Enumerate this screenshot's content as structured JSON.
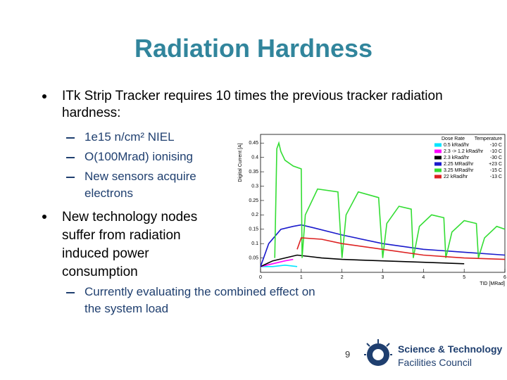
{
  "title": "Radiation Hardness",
  "bullets": [
    {
      "text": "ITk Strip Tracker requires 10 times the previous tracker radiation hardness:",
      "sub": [
        "1e15 n/cm² NIEL",
        "O(100Mrad) ionising",
        "New sensors acquire electrons"
      ]
    },
    {
      "text": "New technology nodes suffer from radiation induced power consumption",
      "sub": [
        "Currently evaluating the combined effect on the system load"
      ]
    }
  ],
  "page_number": 9,
  "logo": {
    "line1": "Science & Technology",
    "line2": "Facilities Council"
  },
  "chart_data": {
    "type": "line",
    "x_label": "TID [MRad]",
    "y_label": "Digital Current [A]",
    "xlim": [
      0,
      6
    ],
    "ylim": [
      0,
      0.48
    ],
    "xticks": [
      0,
      1,
      2,
      3,
      4,
      5,
      6
    ],
    "yticks": [
      0.05,
      0.1,
      0.15,
      0.2,
      0.25,
      0.3,
      0.35,
      0.4,
      0.45
    ],
    "legend": "upper right",
    "legend_headers": [
      "Dose Rate",
      "Temperature"
    ],
    "series": [
      {
        "name": "0.5 kRad/hr",
        "temperature": "-10 C",
        "color": "#00e5ff",
        "x": [
          0,
          0.3,
          0.6,
          0.9
        ],
        "values": [
          0.02,
          0.02,
          0.025,
          0.02
        ]
      },
      {
        "name": "2.3 -> 1.2 kRad/hr",
        "temperature": "-10 C",
        "color": "#ff00ff",
        "x": [
          0,
          0.3,
          0.6,
          0.8
        ],
        "values": [
          0.02,
          0.03,
          0.04,
          0.045
        ]
      },
      {
        "name": "2.3 kRad/hr",
        "temperature": "-30 C",
        "color": "#000000",
        "x": [
          0,
          0.3,
          0.6,
          0.9,
          1.2,
          1.5,
          2,
          3,
          4,
          5
        ],
        "values": [
          0.02,
          0.04,
          0.05,
          0.06,
          0.055,
          0.05,
          0.045,
          0.04,
          0.035,
          0.03
        ]
      },
      {
        "name": "2.25 MRad/hr",
        "temperature": "+23 C",
        "color": "#1a1acc",
        "x": [
          0,
          0.2,
          0.5,
          0.8,
          1.0,
          1.3,
          2,
          3,
          4,
          5,
          6
        ],
        "values": [
          0.02,
          0.1,
          0.15,
          0.16,
          0.165,
          0.155,
          0.13,
          0.1,
          0.08,
          0.07,
          0.06
        ]
      },
      {
        "name": "3.25 MRad/hr",
        "temperature": "-15 C",
        "color": "#33dd33",
        "x": [
          0.35,
          0.4,
          0.45,
          0.5,
          0.6,
          0.8,
          1.0,
          1.02,
          1.1,
          1.4,
          1.9,
          2.0,
          2.1,
          2.4,
          2.9,
          3.0,
          3.1,
          3.4,
          3.7,
          3.75,
          3.9,
          4.2,
          4.5,
          4.55,
          4.7,
          5.0,
          5.3,
          5.35,
          5.5,
          5.8,
          6.0
        ],
        "values": [
          0.05,
          0.43,
          0.45,
          0.42,
          0.39,
          0.37,
          0.36,
          0.05,
          0.2,
          0.29,
          0.28,
          0.05,
          0.2,
          0.28,
          0.26,
          0.05,
          0.17,
          0.23,
          0.22,
          0.05,
          0.16,
          0.2,
          0.19,
          0.05,
          0.14,
          0.18,
          0.17,
          0.05,
          0.12,
          0.16,
          0.15
        ]
      },
      {
        "name": "22 kRad/hr",
        "temperature": "-13 C",
        "color": "#dd2222",
        "x": [
          0.9,
          1.0,
          1.5,
          2,
          3,
          4,
          5,
          6
        ],
        "values": [
          0.08,
          0.12,
          0.115,
          0.1,
          0.08,
          0.06,
          0.05,
          0.045
        ]
      }
    ]
  }
}
